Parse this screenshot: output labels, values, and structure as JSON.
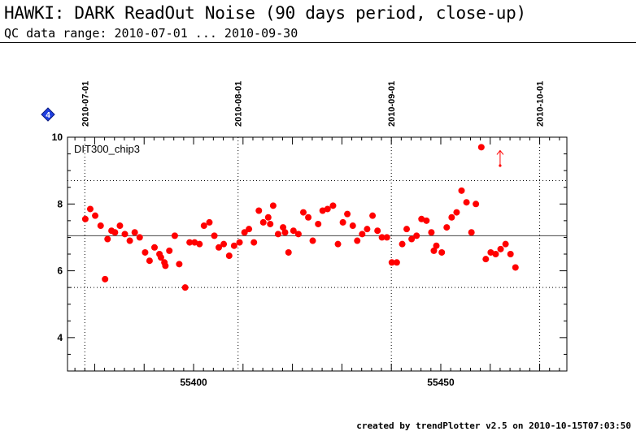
{
  "header": {
    "title": "HAWKI: DARK ReadOut Noise (90 days period, close-up)",
    "subtitle": "QC data range: 2010-07-01 ... 2010-09-30"
  },
  "footer": {
    "credit": "created by trendPlotter v2.5 on 2010-10-15T07:03:50"
  },
  "badge_label": "4",
  "colors": {
    "points": "#ff0000",
    "badge": "#1f3fe0",
    "axis": "#000000"
  },
  "chart_data": {
    "type": "scatter",
    "series_label": "DIT300_chip3",
    "xlim": [
      55374.5,
      55475.5
    ],
    "ylim": [
      3,
      10
    ],
    "x_ticks": [
      55400,
      55450
    ],
    "y_ticks": [
      4,
      6,
      8,
      10
    ],
    "date_markers": [
      {
        "label": "2010-07-01",
        "x": 55378
      },
      {
        "label": "2010-08-01",
        "x": 55409
      },
      {
        "label": "2010-09-01",
        "x": 55440
      },
      {
        "label": "2010-10-01",
        "x": 55470
      }
    ],
    "mean_line": 7.05,
    "threshold_lines": [
      8.7,
      5.5
    ],
    "outlier_arrow": {
      "x": 55462,
      "y_from": 9.15,
      "y_to": 9.6
    },
    "points": [
      [
        55378.1,
        7.55
      ],
      [
        55379.1,
        7.85
      ],
      [
        55380.1,
        7.65
      ],
      [
        55381.2,
        7.35
      ],
      [
        55382.1,
        5.75
      ],
      [
        55382.6,
        6.95
      ],
      [
        55383.4,
        7.2
      ],
      [
        55384.1,
        7.15
      ],
      [
        55385.1,
        7.35
      ],
      [
        55386.1,
        7.1
      ],
      [
        55387.1,
        6.9
      ],
      [
        55388.1,
        7.15
      ],
      [
        55389.1,
        7.0
      ],
      [
        55390.2,
        6.55
      ],
      [
        55391.1,
        6.3
      ],
      [
        55392.1,
        6.7
      ],
      [
        55393.1,
        6.5
      ],
      [
        55393.4,
        6.4
      ],
      [
        55394.1,
        6.25
      ],
      [
        55394.3,
        6.15
      ],
      [
        55395.1,
        6.6
      ],
      [
        55396.2,
        7.05
      ],
      [
        55397.1,
        6.2
      ],
      [
        55398.3,
        5.5
      ],
      [
        55399.2,
        6.85
      ],
      [
        55400.2,
        6.85
      ],
      [
        55401.2,
        6.8
      ],
      [
        55402.1,
        7.35
      ],
      [
        55403.2,
        7.45
      ],
      [
        55404.2,
        7.05
      ],
      [
        55405.1,
        6.7
      ],
      [
        55406.1,
        6.8
      ],
      [
        55407.2,
        6.45
      ],
      [
        55408.2,
        6.75
      ],
      [
        55409.3,
        6.85
      ],
      [
        55410.3,
        7.15
      ],
      [
        55411.2,
        7.25
      ],
      [
        55412.2,
        6.85
      ],
      [
        55413.2,
        7.8
      ],
      [
        55414.1,
        7.45
      ],
      [
        55415.1,
        7.6
      ],
      [
        55415.5,
        7.4
      ],
      [
        55416.1,
        7.95
      ],
      [
        55417.1,
        7.1
      ],
      [
        55418.1,
        7.3
      ],
      [
        55418.5,
        7.15
      ],
      [
        55419.2,
        6.55
      ],
      [
        55420.2,
        7.2
      ],
      [
        55421.2,
        7.1
      ],
      [
        55422.2,
        7.75
      ],
      [
        55423.2,
        7.6
      ],
      [
        55424.1,
        6.9
      ],
      [
        55425.2,
        7.4
      ],
      [
        55426.1,
        7.8
      ],
      [
        55427.1,
        7.85
      ],
      [
        55428.2,
        7.95
      ],
      [
        55429.2,
        6.8
      ],
      [
        55430.2,
        7.45
      ],
      [
        55431.1,
        7.7
      ],
      [
        55432.2,
        7.35
      ],
      [
        55433.1,
        6.9
      ],
      [
        55434.1,
        7.1
      ],
      [
        55435.1,
        7.25
      ],
      [
        55436.2,
        7.65
      ],
      [
        55437.2,
        7.2
      ],
      [
        55438.1,
        7.0
      ],
      [
        55439.1,
        7.0
      ],
      [
        55440.1,
        6.25
      ],
      [
        55441.1,
        6.25
      ],
      [
        55442.2,
        6.8
      ],
      [
        55443.1,
        7.25
      ],
      [
        55444.1,
        6.95
      ],
      [
        55445.1,
        7.05
      ],
      [
        55446.1,
        7.55
      ],
      [
        55447.1,
        7.5
      ],
      [
        55448.1,
        7.15
      ],
      [
        55448.6,
        6.6
      ],
      [
        55449.1,
        6.75
      ],
      [
        55450.2,
        6.55
      ],
      [
        55451.2,
        7.3
      ],
      [
        55452.2,
        7.6
      ],
      [
        55453.2,
        7.75
      ],
      [
        55454.2,
        8.4
      ],
      [
        55455.2,
        8.05
      ],
      [
        55456.2,
        7.15
      ],
      [
        55457.1,
        8.0
      ],
      [
        55458.2,
        9.7
      ],
      [
        55459.1,
        6.35
      ],
      [
        55460.1,
        6.55
      ],
      [
        55461.1,
        6.5
      ],
      [
        55462.1,
        6.65
      ],
      [
        55463.1,
        6.8
      ],
      [
        55464.1,
        6.5
      ],
      [
        55465.1,
        6.1
      ]
    ]
  }
}
